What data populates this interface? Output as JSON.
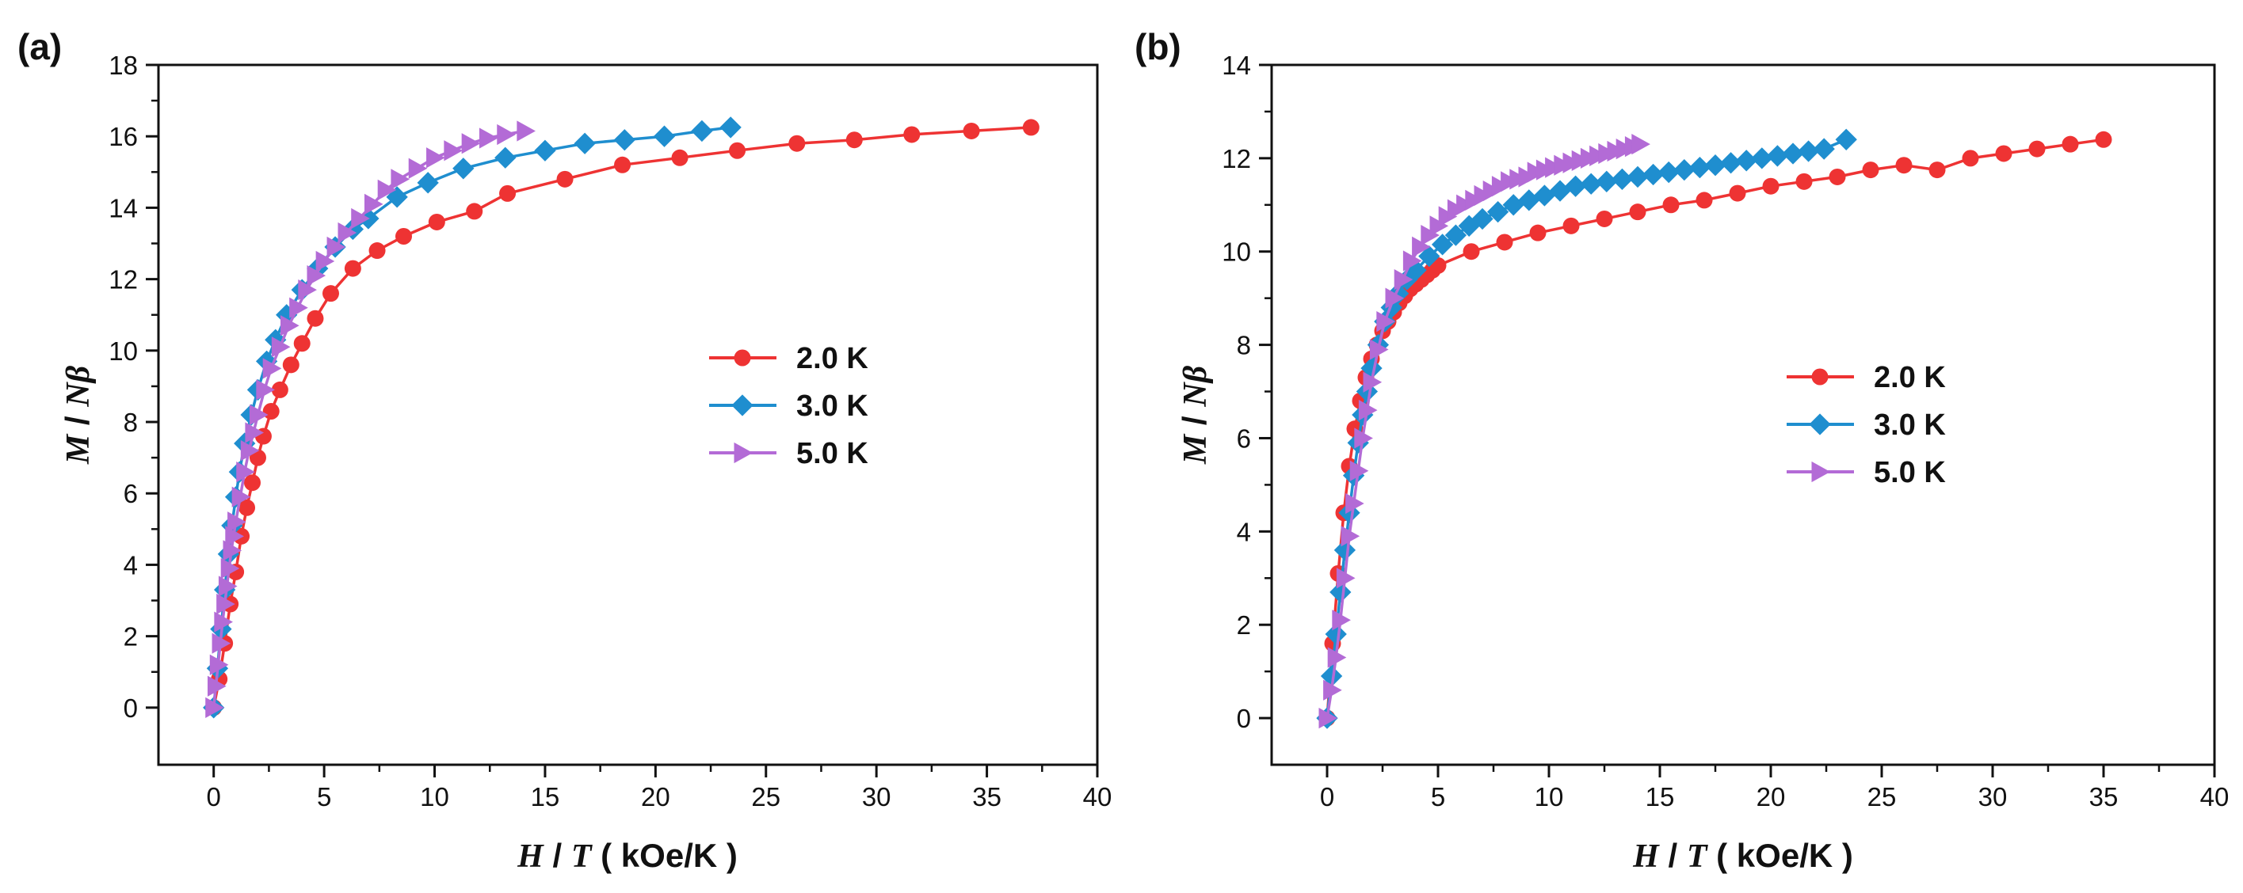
{
  "colors": {
    "series_2K": "#ee3333",
    "series_3K": "#1f8ecf",
    "series_5K": "#b36bd6",
    "axis": "#111111"
  },
  "chart_data": [
    {
      "type": "line",
      "panel_label": "(a)",
      "xlabel_italic_1": "H",
      "xlabel_sep": " / ",
      "xlabel_italic_2": "T",
      "xlabel_unit": " ( kOe/K )",
      "ylabel_italic_1": "M",
      "ylabel_sep": " / ",
      "ylabel_italic_2": "Nβ",
      "xlim": [
        -2.5,
        40
      ],
      "ylim": [
        -1.6,
        18
      ],
      "xticks": [
        0,
        5,
        10,
        15,
        20,
        25,
        30,
        35,
        40
      ],
      "yticks": [
        0,
        2,
        4,
        6,
        8,
        10,
        12,
        14,
        16,
        18
      ],
      "xtick_labels": [
        "0",
        "5",
        "10",
        "15",
        "20",
        "25",
        "30",
        "35",
        "40"
      ],
      "ytick_labels": [
        "0",
        "2",
        "4",
        "6",
        "8",
        "10",
        "12",
        "14",
        "16",
        "18"
      ],
      "legend_position": "center-right",
      "legend_labels": [
        "2.0 K",
        "3.0 K",
        "5.0 K"
      ],
      "series": [
        {
          "name": "2.0 K",
          "marker": "circle",
          "color": "#ee3333",
          "x": [
            0,
            0.25,
            0.5,
            0.75,
            1.0,
            1.25,
            1.5,
            1.75,
            2.0,
            2.25,
            2.6,
            3.0,
            3.5,
            4.0,
            4.6,
            5.3,
            6.3,
            7.4,
            8.6,
            10.1,
            11.8,
            13.3,
            15.9,
            18.5,
            21.1,
            23.7,
            26.4,
            29.0,
            31.6,
            34.3,
            37.0
          ],
          "y": [
            0,
            0.8,
            1.8,
            2.9,
            3.8,
            4.8,
            5.6,
            6.3,
            7.0,
            7.6,
            8.3,
            8.9,
            9.6,
            10.2,
            10.9,
            11.6,
            12.3,
            12.8,
            13.2,
            13.6,
            13.9,
            14.4,
            14.8,
            15.2,
            15.4,
            15.6,
            15.8,
            15.9,
            16.05,
            16.15,
            16.25
          ]
        },
        {
          "name": "3.0 K",
          "marker": "diamond",
          "color": "#1f8ecf",
          "x": [
            0,
            0.17,
            0.33,
            0.5,
            0.67,
            0.83,
            1.0,
            1.17,
            1.4,
            1.7,
            2.0,
            2.4,
            2.8,
            3.3,
            4.0,
            4.7,
            5.5,
            6.3,
            7.0,
            8.3,
            9.7,
            11.3,
            13.2,
            15.0,
            16.8,
            18.6,
            20.4,
            22.1,
            23.4
          ],
          "y": [
            0,
            1.1,
            2.2,
            3.3,
            4.3,
            5.1,
            5.9,
            6.6,
            7.4,
            8.2,
            8.9,
            9.7,
            10.3,
            11.0,
            11.7,
            12.3,
            12.9,
            13.4,
            13.7,
            14.3,
            14.7,
            15.1,
            15.4,
            15.6,
            15.8,
            15.9,
            16.0,
            16.15,
            16.25
          ]
        },
        {
          "name": "5.0 K",
          "marker": "triangle-right",
          "color": "#b36bd6",
          "x": [
            0,
            0.1,
            0.2,
            0.3,
            0.4,
            0.5,
            0.6,
            0.7,
            0.8,
            0.9,
            1.0,
            1.2,
            1.4,
            1.6,
            1.8,
            2.0,
            2.3,
            2.6,
            3.0,
            3.4,
            3.8,
            4.2,
            4.6,
            5.0,
            5.5,
            6.0,
            6.6,
            7.2,
            7.8,
            8.4,
            9.2,
            10.0,
            10.8,
            11.6,
            12.4,
            13.2,
            14.1
          ],
          "y": [
            0,
            0.6,
            1.2,
            1.8,
            2.4,
            2.9,
            3.4,
            3.9,
            4.4,
            4.8,
            5.2,
            5.9,
            6.6,
            7.2,
            7.7,
            8.2,
            8.9,
            9.5,
            10.1,
            10.7,
            11.2,
            11.7,
            12.1,
            12.5,
            12.9,
            13.3,
            13.7,
            14.1,
            14.5,
            14.8,
            15.1,
            15.4,
            15.6,
            15.8,
            15.95,
            16.05,
            16.15
          ]
        }
      ]
    },
    {
      "type": "line",
      "panel_label": "(b)",
      "xlabel_italic_1": "H",
      "xlabel_sep": " / ",
      "xlabel_italic_2": "T",
      "xlabel_unit": " ( kOe/K )",
      "ylabel_italic_1": "M",
      "ylabel_sep": " / ",
      "ylabel_italic_2": "Nβ",
      "xlim": [
        -2.5,
        40
      ],
      "ylim": [
        -1.0,
        14
      ],
      "xticks": [
        0,
        5,
        10,
        15,
        20,
        25,
        30,
        35,
        40
      ],
      "yticks": [
        0,
        2,
        4,
        6,
        8,
        10,
        12,
        14
      ],
      "xtick_labels": [
        "0",
        "5",
        "10",
        "15",
        "20",
        "25",
        "30",
        "35",
        "40"
      ],
      "ytick_labels": [
        "0",
        "2",
        "4",
        "6",
        "8",
        "10",
        "12",
        "14"
      ],
      "legend_position": "center-right",
      "legend_labels": [
        "2.0 K",
        "3.0 K",
        "5.0 K"
      ],
      "series": [
        {
          "name": "2.0 K",
          "marker": "circle",
          "color": "#ee3333",
          "x": [
            0,
            0.25,
            0.5,
            0.75,
            1.0,
            1.25,
            1.5,
            1.75,
            2.0,
            2.25,
            2.5,
            2.75,
            3.0,
            3.25,
            3.5,
            3.75,
            4.0,
            4.25,
            4.5,
            4.75,
            5.0,
            6.5,
            8.0,
            9.5,
            11.0,
            12.5,
            14.0,
            15.5,
            17.0,
            18.5,
            20.0,
            21.5,
            23.0,
            24.5,
            26.0,
            27.5,
            29.0,
            30.5,
            32.0,
            33.5,
            35.0
          ],
          "y": [
            0,
            1.6,
            3.1,
            4.4,
            5.4,
            6.2,
            6.8,
            7.3,
            7.7,
            8.0,
            8.3,
            8.5,
            8.7,
            8.9,
            9.05,
            9.2,
            9.3,
            9.4,
            9.5,
            9.6,
            9.7,
            10.0,
            10.2,
            10.4,
            10.55,
            10.7,
            10.85,
            11.0,
            11.1,
            11.25,
            11.4,
            11.5,
            11.6,
            11.75,
            11.85,
            11.75,
            12.0,
            12.1,
            12.2,
            12.3,
            12.4
          ]
        },
        {
          "name": "3.0 K",
          "marker": "diamond",
          "color": "#1f8ecf",
          "x": [
            0,
            0.2,
            0.4,
            0.6,
            0.8,
            1.0,
            1.2,
            1.4,
            1.6,
            1.8,
            2.0,
            2.3,
            2.6,
            2.9,
            3.2,
            3.6,
            4.0,
            4.6,
            5.2,
            5.8,
            6.4,
            7.0,
            7.7,
            8.4,
            9.1,
            9.8,
            10.5,
            11.2,
            11.9,
            12.6,
            13.3,
            14.0,
            14.7,
            15.4,
            16.1,
            16.8,
            17.5,
            18.2,
            18.9,
            19.6,
            20.3,
            21.0,
            21.7,
            22.4,
            23.4
          ],
          "y": [
            0,
            0.9,
            1.8,
            2.7,
            3.6,
            4.4,
            5.2,
            5.9,
            6.5,
            7.0,
            7.5,
            8.0,
            8.5,
            8.8,
            9.1,
            9.4,
            9.6,
            9.9,
            10.15,
            10.35,
            10.55,
            10.7,
            10.85,
            11.0,
            11.1,
            11.2,
            11.3,
            11.4,
            11.45,
            11.5,
            11.55,
            11.6,
            11.65,
            11.7,
            11.75,
            11.8,
            11.85,
            11.9,
            11.95,
            12.0,
            12.05,
            12.1,
            12.15,
            12.2,
            12.4
          ]
        },
        {
          "name": "5.0 K",
          "marker": "triangle-right",
          "color": "#b36bd6",
          "x": [
            0,
            0.2,
            0.4,
            0.6,
            0.8,
            1.0,
            1.2,
            1.4,
            1.6,
            1.8,
            2.0,
            2.3,
            2.6,
            3.0,
            3.4,
            3.8,
            4.2,
            4.6,
            5.0,
            5.4,
            5.8,
            6.2,
            6.6,
            7.0,
            7.4,
            7.8,
            8.2,
            8.6,
            9.0,
            9.4,
            9.8,
            10.2,
            10.6,
            11.0,
            11.4,
            11.8,
            12.2,
            12.6,
            13.0,
            13.4,
            13.8,
            14.1
          ],
          "y": [
            0,
            0.6,
            1.3,
            2.1,
            3.0,
            3.9,
            4.6,
            5.3,
            6.0,
            6.6,
            7.2,
            7.9,
            8.5,
            9.0,
            9.4,
            9.8,
            10.1,
            10.35,
            10.55,
            10.75,
            10.9,
            11.0,
            11.1,
            11.2,
            11.3,
            11.4,
            11.5,
            11.55,
            11.6,
            11.7,
            11.75,
            11.8,
            11.85,
            11.9,
            11.95,
            12.0,
            12.05,
            12.1,
            12.15,
            12.2,
            12.25,
            12.3
          ]
        }
      ]
    }
  ]
}
